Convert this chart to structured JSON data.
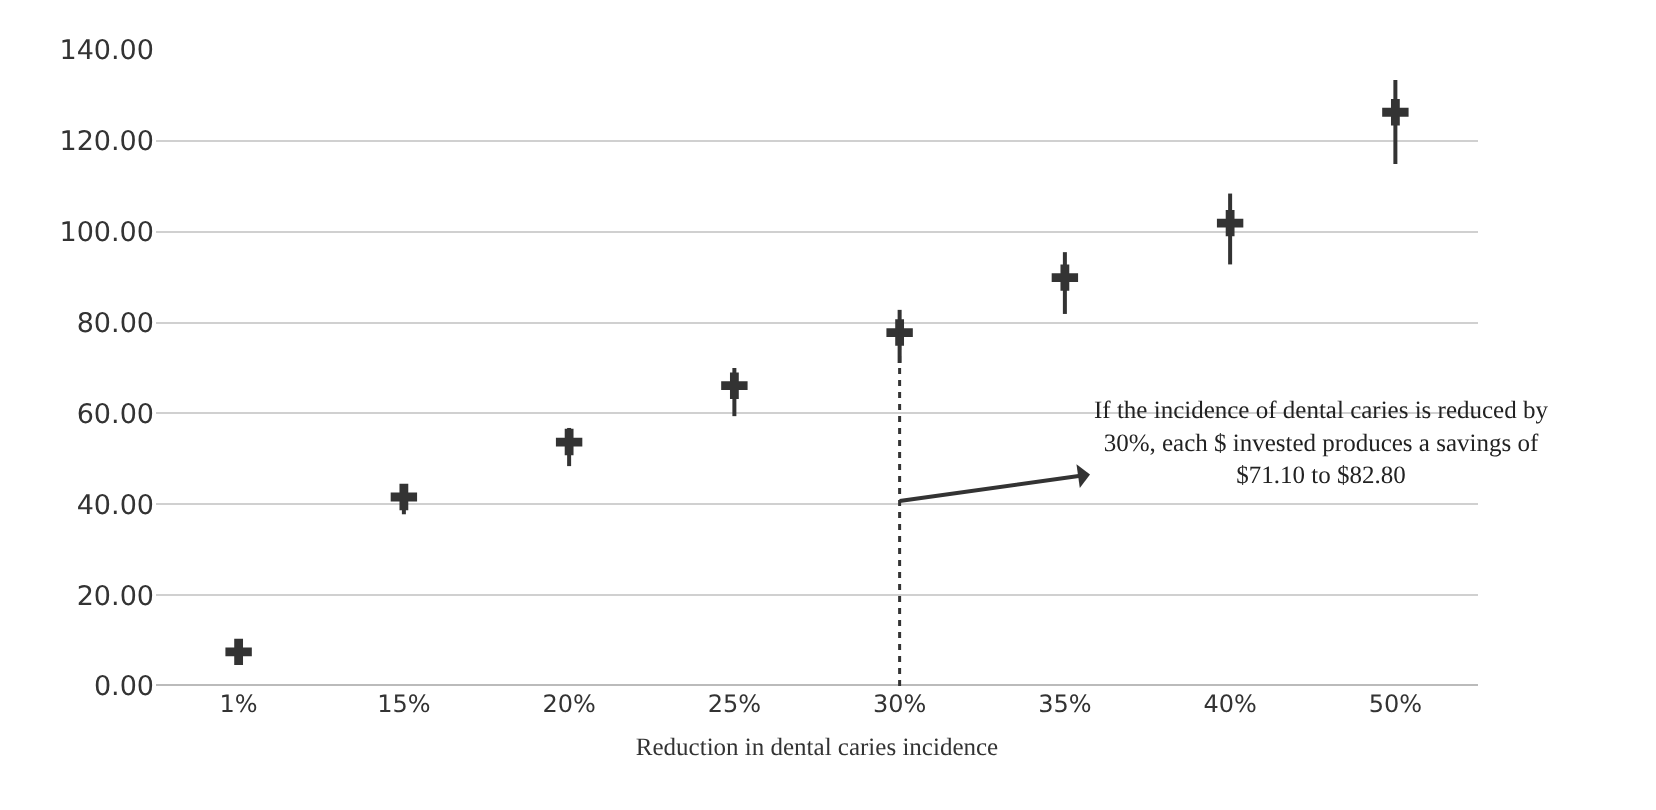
{
  "chart_data": {
    "type": "scatter",
    "xlabel": "Reduction in dental caries incidence",
    "categories": [
      "1%",
      "15%",
      "20%",
      "25%",
      "30%",
      "35%",
      "40%",
      "50%"
    ],
    "values": [
      7.5,
      41.6,
      53.7,
      66.1,
      77.8,
      89.9,
      101.9,
      126.3
    ],
    "errors": [
      null,
      [
        37.8,
        44.0
      ],
      [
        48.4,
        56.8
      ],
      [
        59.4,
        70.0
      ],
      [
        71.1,
        82.8
      ],
      [
        81.9,
        95.5
      ],
      [
        92.8,
        108.4
      ],
      [
        114.9,
        133.4
      ]
    ],
    "color": "#333333",
    "marker": "cross",
    "ylim": [
      0,
      140
    ],
    "yticks": [
      {
        "value": 0,
        "label": "0.00"
      },
      {
        "value": 20,
        "label": "20.00"
      },
      {
        "value": 40,
        "label": "40.00"
      },
      {
        "value": 60,
        "label": "60.00"
      },
      {
        "value": 80,
        "label": "80.00"
      },
      {
        "value": 100,
        "label": "100.00"
      },
      {
        "value": 120,
        "label": "120.00"
      },
      {
        "value": 140,
        "label": "140.00"
      }
    ],
    "grid": "y",
    "ref_lines": [
      {
        "axis": "x",
        "value": "30%",
        "line_style": "dotted",
        "color": "#333333"
      }
    ],
    "annotations": [
      {
        "text": "If the incidence of dental caries is reduced by\n30%, each $ invested produces a savings of\n$71.10 to $82.80",
        "x": "30%",
        "y": 40.7
      }
    ]
  }
}
